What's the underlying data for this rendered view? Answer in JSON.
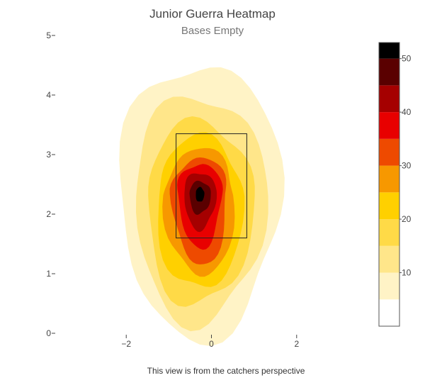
{
  "chart_data": {
    "type": "heatmap",
    "title": "Junior Guerra Heatmap",
    "subtitle": "Bases Empty",
    "caption": "This view is from the catchers perspective",
    "xlabel": "",
    "ylabel": "",
    "xlim": [
      -3.5,
      3.5
    ],
    "ylim": [
      0,
      5
    ],
    "x_ticks": [
      -2,
      0,
      2
    ],
    "y_ticks": [
      0,
      1,
      2,
      3,
      4,
      5
    ],
    "strike_zone": {
      "x": [
        -0.83,
        0.83
      ],
      "y": [
        1.6,
        3.35
      ]
    },
    "density_center": {
      "x": -0.27,
      "y": 2.35
    },
    "contour_levels": [
      5,
      10,
      15,
      20,
      25,
      30,
      35,
      40,
      45,
      50
    ],
    "colorscale": {
      "min": 0,
      "max": 53,
      "tick_values": [
        10,
        20,
        30,
        40,
        50
      ],
      "bands": [
        {
          "from": 0,
          "to": 5,
          "color": "#ffffff"
        },
        {
          "from": 5,
          "to": 10,
          "color": "#fff3c6"
        },
        {
          "from": 10,
          "to": 15,
          "color": "#ffe68a"
        },
        {
          "from": 15,
          "to": 20,
          "color": "#ffda47"
        },
        {
          "from": 20,
          "to": 25,
          "color": "#ffd000"
        },
        {
          "from": 25,
          "to": 30,
          "color": "#f79800"
        },
        {
          "from": 30,
          "to": 35,
          "color": "#ee4a00"
        },
        {
          "from": 35,
          "to": 40,
          "color": "#e80000"
        },
        {
          "from": 40,
          "to": 45,
          "color": "#a50000"
        },
        {
          "from": 45,
          "to": 50,
          "color": "#5a0000"
        },
        {
          "from": 50,
          "to": 53,
          "color": "#000000"
        }
      ]
    }
  }
}
